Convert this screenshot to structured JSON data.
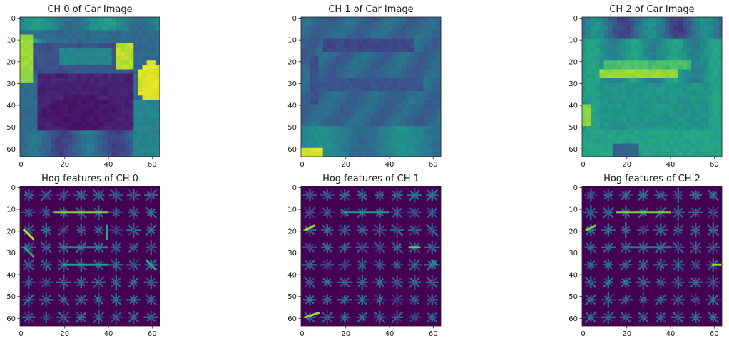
{
  "chart_data": [
    {
      "type": "heatmap",
      "title": "CH 0 of Car Image",
      "xlim": [
        0,
        63
      ],
      "ylim": [
        63,
        0
      ],
      "xticks": [
        0,
        20,
        40,
        60
      ],
      "yticks": [
        0,
        10,
        20,
        30,
        40,
        50,
        60
      ],
      "colormap": "viridis",
      "grid": false
    },
    {
      "type": "heatmap",
      "title": "CH 1 of Car Image",
      "xlim": [
        0,
        63
      ],
      "ylim": [
        63,
        0
      ],
      "xticks": [
        0,
        20,
        40,
        60
      ],
      "yticks": [
        0,
        10,
        20,
        30,
        40,
        50,
        60
      ],
      "colormap": "viridis",
      "grid": false
    },
    {
      "type": "heatmap",
      "title": "CH 2 of Car Image",
      "xlim": [
        0,
        63
      ],
      "ylim": [
        63,
        0
      ],
      "xticks": [
        0,
        20,
        40,
        60
      ],
      "yticks": [
        0,
        10,
        20,
        30,
        40,
        50,
        60
      ],
      "colormap": "viridis",
      "grid": false
    },
    {
      "type": "heatmap",
      "title": "Hog features of CH 0",
      "xlim": [
        0,
        63
      ],
      "ylim": [
        63,
        0
      ],
      "xticks": [
        0,
        20,
        40,
        60
      ],
      "yticks": [
        0,
        10,
        20,
        30,
        40,
        50,
        60
      ],
      "colormap": "viridis",
      "grid": false
    },
    {
      "type": "heatmap",
      "title": "Hog features of CH 1",
      "xlim": [
        0,
        63
      ],
      "ylim": [
        63,
        0
      ],
      "xticks": [
        0,
        20,
        40,
        60
      ],
      "yticks": [
        0,
        10,
        20,
        30,
        40,
        50,
        60
      ],
      "colormap": "viridis",
      "grid": false
    },
    {
      "type": "heatmap",
      "title": "Hog features of CH 2",
      "xlim": [
        0,
        63
      ],
      "ylim": [
        63,
        0
      ],
      "xticks": [
        0,
        20,
        40,
        60
      ],
      "yticks": [
        0,
        10,
        20,
        30,
        40,
        50,
        60
      ],
      "colormap": "viridis",
      "grid": false
    }
  ]
}
